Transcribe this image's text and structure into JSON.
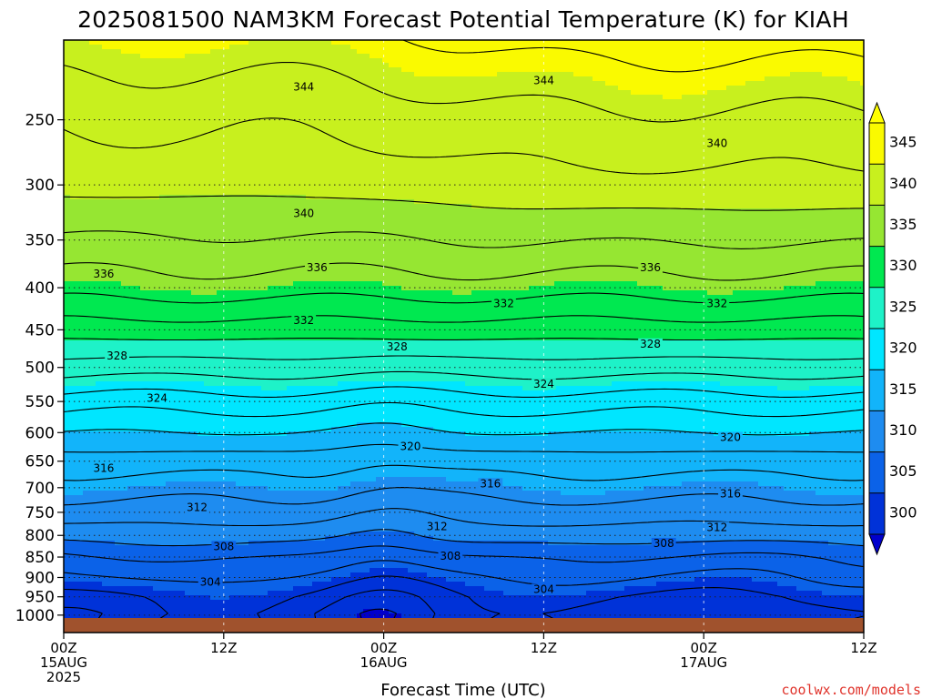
{
  "chart_data": {
    "type": "heatmap",
    "title": "2025081500 NAM3KM Forecast Potential Temperature (K) for KIAH",
    "xlabel": "Forecast Time (UTC)",
    "credit": "coolwx.com/models",
    "y_scale": "log",
    "y_inverted": true,
    "y_range_hpa": [
      1050,
      200
    ],
    "y_ticks": [
      "250",
      "300",
      "350",
      "400",
      "450",
      "500",
      "550",
      "600",
      "650",
      "700",
      "750",
      "800",
      "850",
      "900",
      "950",
      "1000"
    ],
    "x_range_hours": [
      0,
      60
    ],
    "x_ticks": [
      {
        "hour": 0,
        "lines": [
          "00Z",
          "15AUG",
          "2025"
        ]
      },
      {
        "hour": 12,
        "lines": [
          "12Z"
        ]
      },
      {
        "hour": 24,
        "lines": [
          "00Z",
          "16AUG"
        ]
      },
      {
        "hour": 36,
        "lines": [
          "12Z"
        ]
      },
      {
        "hour": 48,
        "lines": [
          "00Z",
          "17AUG"
        ]
      },
      {
        "hour": 60,
        "lines": [
          "12Z"
        ]
      }
    ],
    "grid": true,
    "colorbar": {
      "placement": "right",
      "labels": [
        "345",
        "340",
        "335",
        "330",
        "325",
        "320",
        "315",
        "310",
        "305",
        "300"
      ],
      "levels": [
        300,
        305,
        310,
        315,
        320,
        325,
        330,
        335,
        340,
        345
      ],
      "colors": [
        "#0032d8",
        "#0b62e8",
        "#1e8cf0",
        "#12b4fa",
        "#00e6ff",
        "#1ef2c8",
        "#00e850",
        "#96e632",
        "#c8f01e",
        "#fafa00"
      ],
      "under_color": "#0000cc",
      "over_color": "#ffff00"
    },
    "ground_color": "#a0522d",
    "contour_interval_k": 2,
    "profile": {
      "pressure_hpa": [
        1000,
        950,
        900,
        850,
        800,
        750,
        700,
        650,
        600,
        550,
        500,
        450,
        400,
        350,
        300,
        250,
        200
      ],
      "theta_k": [
        303,
        304,
        306,
        308,
        311,
        313,
        315,
        317,
        320,
        323,
        327,
        331,
        335,
        338,
        341,
        343,
        346
      ]
    },
    "contour_labels": [
      {
        "text": "344",
        "hour": 18,
        "p": 228
      },
      {
        "text": "344",
        "hour": 36,
        "p": 224
      },
      {
        "text": "340",
        "hour": 49,
        "p": 267
      },
      {
        "text": "340",
        "hour": 18,
        "p": 325
      },
      {
        "text": "336",
        "hour": 3,
        "p": 385
      },
      {
        "text": "336",
        "hour": 19,
        "p": 378
      },
      {
        "text": "336",
        "hour": 44,
        "p": 378
      },
      {
        "text": "332",
        "hour": 33,
        "p": 418
      },
      {
        "text": "332",
        "hour": 18,
        "p": 438
      },
      {
        "text": "332",
        "hour": 49,
        "p": 418
      },
      {
        "text": "328",
        "hour": 4,
        "p": 484
      },
      {
        "text": "328",
        "hour": 25,
        "p": 472
      },
      {
        "text": "328",
        "hour": 44,
        "p": 468
      },
      {
        "text": "324",
        "hour": 7,
        "p": 545
      },
      {
        "text": "324",
        "hour": 36,
        "p": 524
      },
      {
        "text": "320",
        "hour": 26,
        "p": 624
      },
      {
        "text": "320",
        "hour": 50,
        "p": 608
      },
      {
        "text": "316",
        "hour": 3,
        "p": 663
      },
      {
        "text": "316",
        "hour": 32,
        "p": 692
      },
      {
        "text": "316",
        "hour": 50,
        "p": 712
      },
      {
        "text": "312",
        "hour": 10,
        "p": 740
      },
      {
        "text": "312",
        "hour": 28,
        "p": 780
      },
      {
        "text": "312",
        "hour": 49,
        "p": 782
      },
      {
        "text": "308",
        "hour": 12,
        "p": 825
      },
      {
        "text": "308",
        "hour": 29,
        "p": 848
      },
      {
        "text": "308",
        "hour": 45,
        "p": 818
      },
      {
        "text": "304",
        "hour": 11,
        "p": 912
      },
      {
        "text": "304",
        "hour": 36,
        "p": 930
      }
    ]
  }
}
